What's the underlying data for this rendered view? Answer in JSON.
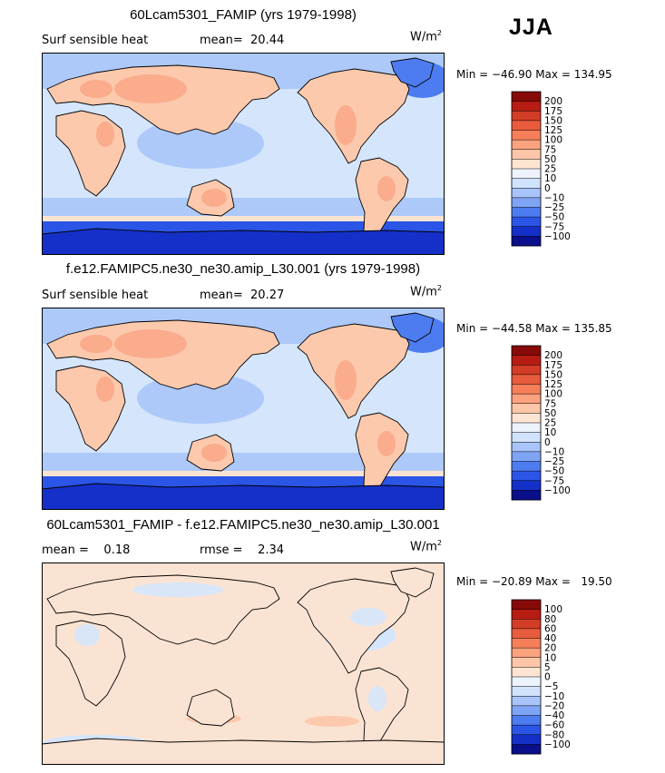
{
  "season": "JJA",
  "colors": {
    "levels": [
      "#0a0f8c",
      "#1530c8",
      "#2a55e6",
      "#4d7cf0",
      "#7ea4f5",
      "#a9c4fa",
      "#d1e2fc",
      "#edf3fd",
      "#ffe4d2",
      "#fdc6a8",
      "#fba27e",
      "#f67f5a",
      "#e85b3c",
      "#d33c26",
      "#b71c12",
      "#880a08"
    ],
    "land_warm": "#f9a988",
    "land_mid": "#fcc9ad",
    "ocean_a": "#d4e5fc",
    "ocean_b": "#adc9fa",
    "pale": "#fbe3d3"
  },
  "panels": [
    {
      "title": "60Lcam5301_FAMIP (yrs 1979-1998)",
      "left_label": "Surf sensible heat",
      "stat_label": "mean=  20.44",
      "units": "W/m",
      "units_sup": "2",
      "minmax": "Min = −46.90 Max = 134.95",
      "levels": [
        "200",
        "175",
        "150",
        "125",
        "100",
        "75",
        "50",
        "25",
        "10",
        "0",
        "−10",
        "−25",
        "−50",
        "−75",
        "−100"
      ]
    },
    {
      "title": "f.e12.FAMIPC5.ne30_ne30.amip_L30.001 (yrs 1979-1998)",
      "left_label": "Surf sensible heat",
      "stat_label": "mean=  20.27",
      "units": "W/m",
      "units_sup": "2",
      "minmax": "Min = −44.58 Max = 135.85",
      "levels": [
        "200",
        "175",
        "150",
        "125",
        "100",
        "75",
        "50",
        "25",
        "10",
        "0",
        "−10",
        "−25",
        "−50",
        "−75",
        "−100"
      ]
    },
    {
      "title": "60Lcam5301_FAMIP - f.e12.FAMIPC5.ne30_ne30.amip_L30.001",
      "left_label": "mean =    0.18",
      "stat_label": "rmse =    2.34",
      "units": "W/m",
      "units_sup": "2",
      "minmax": "Min = −20.89 Max =   19.50",
      "levels": [
        "100",
        "80",
        "60",
        "40",
        "20",
        "10",
        "5",
        "0",
        "−5",
        "−10",
        "−20",
        "−40",
        "−60",
        "−80",
        "−100"
      ]
    }
  ],
  "chart_data": [
    {
      "type": "heatmap",
      "title": "60Lcam5301_FAMIP (yrs 1979-1998)",
      "variable": "Surf sensible heat",
      "mean": 20.44,
      "units": "W/m2",
      "min": -46.9,
      "max": 134.95,
      "colorbar_levels": [
        -100,
        -75,
        -50,
        -25,
        -10,
        0,
        10,
        25,
        50,
        75,
        100,
        125,
        150,
        175,
        200
      ]
    },
    {
      "type": "heatmap",
      "title": "f.e12.FAMIPC5.ne30_ne30.amip_L30.001 (yrs 1979-1998)",
      "variable": "Surf sensible heat",
      "mean": 20.27,
      "units": "W/m2",
      "min": -44.58,
      "max": 135.85,
      "colorbar_levels": [
        -100,
        -75,
        -50,
        -25,
        -10,
        0,
        10,
        25,
        50,
        75,
        100,
        125,
        150,
        175,
        200
      ]
    },
    {
      "type": "heatmap",
      "title": "60Lcam5301_FAMIP - f.e12.FAMIPC5.ne30_ne30.amip_L30.001",
      "mean": 0.18,
      "rmse": 2.34,
      "units": "W/m2",
      "min": -20.89,
      "max": 19.5,
      "colorbar_levels": [
        -100,
        -80,
        -60,
        -40,
        -20,
        -10,
        -5,
        0,
        5,
        10,
        20,
        40,
        60,
        80,
        100
      ]
    }
  ]
}
